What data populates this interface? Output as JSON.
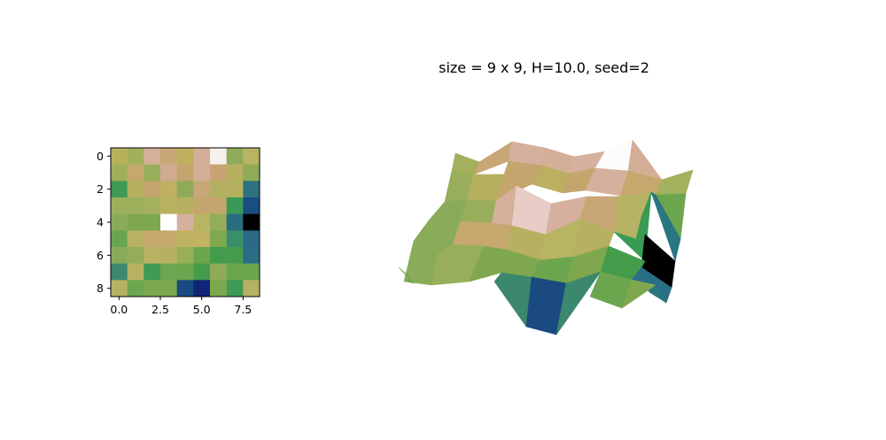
{
  "chart_data": [
    {
      "type": "heatmap",
      "title": "",
      "xlabel": "",
      "ylabel": "",
      "xticks": [
        "0.0",
        "2.5",
        "5.0",
        "7.5"
      ],
      "yticks": [
        "0",
        "2",
        "4",
        "6",
        "8"
      ],
      "xlim": [
        -0.5,
        8.5
      ],
      "ylim": [
        8.5,
        -0.5
      ],
      "colormap": "gist_earth",
      "grid": false,
      "cells": [
        [
          "#b6b25c",
          "#a1b05c",
          "#d4b09a",
          "#c8a675",
          "#bdb160",
          "#d4ae96",
          "#f7f0ee",
          "#8fab5a",
          "#b8b463"
        ],
        [
          "#a0af5c",
          "#c4a86c",
          "#98ae5a",
          "#d2aa92",
          "#c4a56d",
          "#d3ae96",
          "#c8a474",
          "#b6b060",
          "#8fab58"
        ],
        [
          "#3f9a55",
          "#b5b05e",
          "#c4a56e",
          "#c0b062",
          "#8fab5a",
          "#c7a778",
          "#b4b061",
          "#b6b160",
          "#2f7080"
        ],
        [
          "#9cb05c",
          "#9cb05c",
          "#a3b05e",
          "#b7b160",
          "#b5b160",
          "#c4a56d",
          "#c4a56d",
          "#399a56",
          "#1a4d80"
        ],
        [
          "#8aac5a",
          "#7fa84e",
          "#7ea84e",
          "#ffffff",
          "#d6b09e",
          "#b7b462",
          "#93ad5a",
          "#286e7e",
          "#000000"
        ],
        [
          "#69a550",
          "#b8b262",
          "#c6a86e",
          "#c6a86e",
          "#bdb260",
          "#c2b262",
          "#7fa850",
          "#3a8e6a",
          "#2a6a86"
        ],
        [
          "#8aac5a",
          "#93ad5a",
          "#b8b263",
          "#b5b160",
          "#98af5a",
          "#6ba64f",
          "#449b4c",
          "#459c4b",
          "#2a6e86"
        ],
        [
          "#3b886e",
          "#b8b263",
          "#3f9a55",
          "#6ca64f",
          "#6ba64f",
          "#449c4b",
          "#8fab58",
          "#6ba64f",
          "#6ba64f"
        ],
        [
          "#b6b263",
          "#6ca64f",
          "#7ea84e",
          "#7ea84e",
          "#1a4a80",
          "#102478",
          "#7ea84e",
          "#3f9a55",
          "#b6b263"
        ]
      ]
    },
    {
      "type": "surface3d",
      "title": "size = 9 x 9, H=10.0, seed=2",
      "colormap": "gist_earth",
      "grid": false,
      "axes_visible": false
    }
  ]
}
